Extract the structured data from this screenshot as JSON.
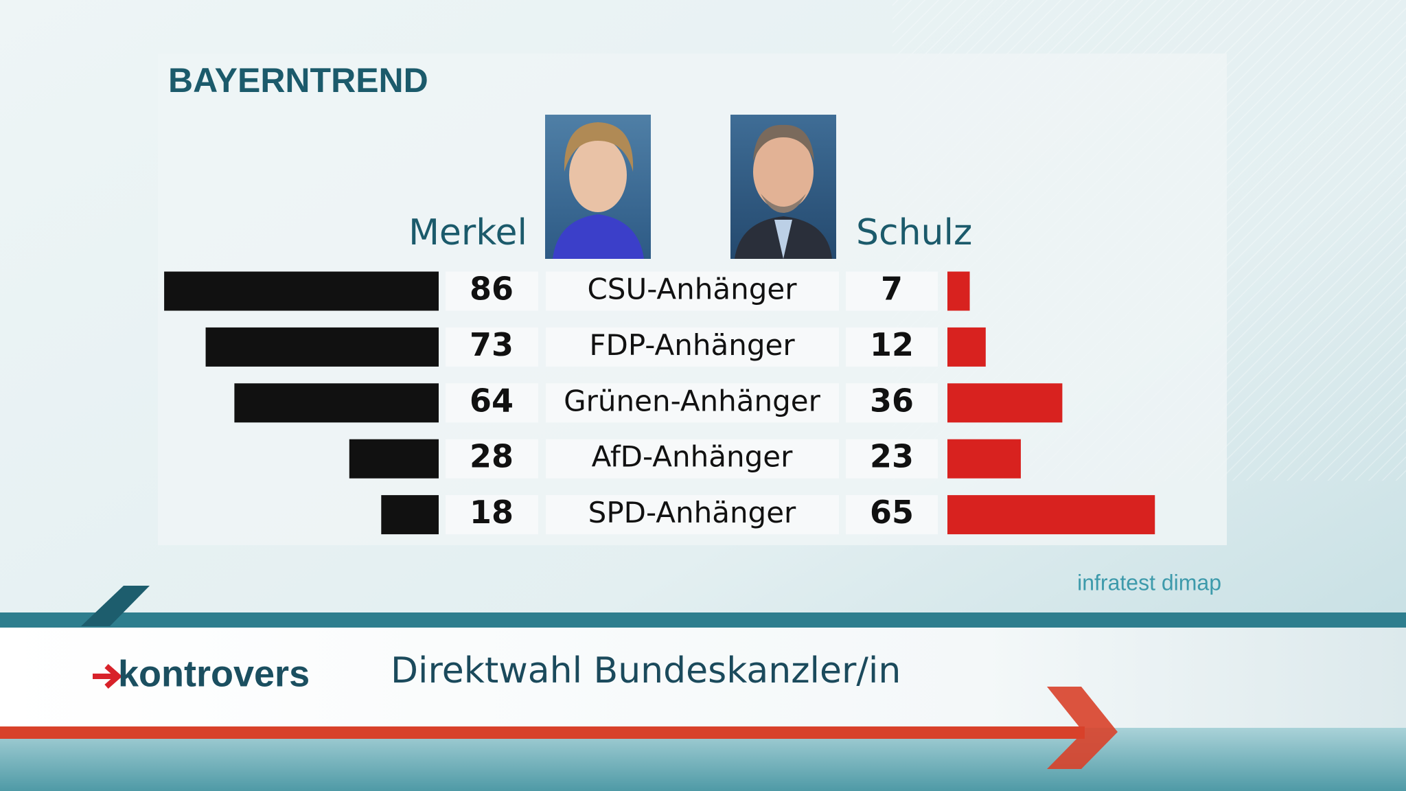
{
  "chart_data": {
    "type": "butterfly",
    "title": "BAYERNTREND",
    "categories": [
      "CSU-Anhänger",
      "FDP-Anhänger",
      "Grünen-Anhänger",
      "AfD-Anhänger",
      "SPD-Anhänger"
    ],
    "series": [
      {
        "name": "Merkel",
        "color": "#111111",
        "values": [
          86,
          73,
          64,
          28,
          18
        ]
      },
      {
        "name": "Schulz",
        "color": "#d8221f",
        "values": [
          7,
          12,
          36,
          23,
          65
        ]
      }
    ],
    "source": "infratest dimap"
  },
  "banner": {
    "brand": "kontrovers",
    "headline": "Direktwahl Bundeskanzler/in"
  }
}
